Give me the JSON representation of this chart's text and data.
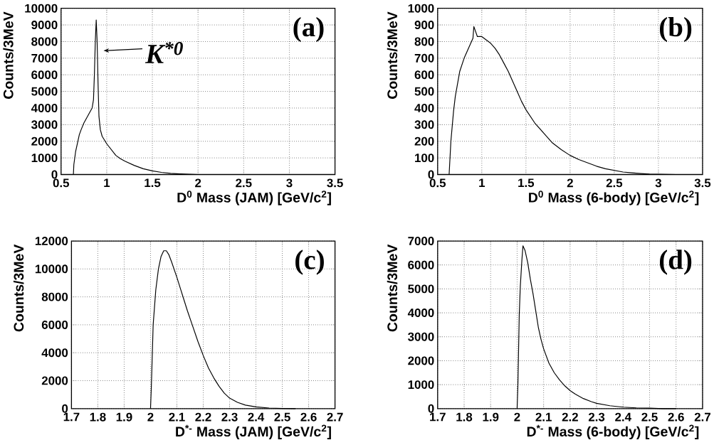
{
  "chart_data": [
    {
      "type": "line",
      "xlabel": "D$^{0}$ Mass (JAM) [GeV/c$^{2}$]",
      "ylabel": "Counts/3MeV",
      "xlim": [
        0.5,
        3.5
      ],
      "ylim": [
        0,
        10000
      ],
      "xticks": [
        0.5,
        1,
        1.5,
        2,
        2.5,
        3,
        3.5
      ],
      "yticks": [
        0,
        1000,
        2000,
        3000,
        4000,
        5000,
        6000,
        7000,
        8000,
        9000,
        10000
      ],
      "grid": true,
      "annotations": [
        "(a)",
        "K$^{*0}$"
      ],
      "x": [
        0.635,
        0.64,
        0.66,
        0.68,
        0.7,
        0.72,
        0.75,
        0.78,
        0.81,
        0.84,
        0.855,
        0.865,
        0.875,
        0.885,
        0.895,
        0.905,
        0.915,
        0.93,
        0.95,
        1.0,
        1.05,
        1.1,
        1.15,
        1.2,
        1.3,
        1.4,
        1.5,
        1.6,
        1.7,
        1.8,
        1.9,
        2.0,
        2.1,
        2.2
      ],
      "series": [
        {
          "color": "#000000",
          "values": [
            0,
            600,
            1400,
            1900,
            2400,
            2700,
            3100,
            3400,
            3700,
            4000,
            4500,
            6000,
            8000,
            9300,
            8000,
            5500,
            3500,
            2700,
            2300,
            1850,
            1500,
            1150,
            950,
            800,
            550,
            350,
            220,
            130,
            70,
            40,
            20,
            0,
            0,
            0
          ]
        }
      ]
    },
    {
      "type": "line",
      "xlabel": "D$^{0}$ Mass (6-body) [GeV/c$^{2}$]",
      "ylabel": "Counts/3MeV",
      "xlim": [
        0.5,
        3.5
      ],
      "ylim": [
        0,
        1000
      ],
      "xticks": [
        0.5,
        1,
        1.5,
        2,
        2.5,
        3,
        3.5
      ],
      "yticks": [
        0,
        100,
        200,
        300,
        400,
        500,
        600,
        700,
        800,
        900,
        1000
      ],
      "grid": true,
      "annotations": [
        "(b)"
      ],
      "x": [
        0.63,
        0.65,
        0.68,
        0.7,
        0.72,
        0.75,
        0.8,
        0.85,
        0.9,
        0.91,
        0.95,
        1.0,
        1.05,
        1.1,
        1.15,
        1.2,
        1.25,
        1.3,
        1.35,
        1.4,
        1.45,
        1.5,
        1.6,
        1.7,
        1.8,
        1.9,
        2.0,
        2.1,
        2.2,
        2.3,
        2.4,
        2.5,
        2.6,
        2.7,
        2.8,
        2.9,
        3.0,
        3.2
      ],
      "series": [
        {
          "color": "#000000",
          "values": [
            0,
            200,
            380,
            470,
            530,
            620,
            700,
            760,
            820,
            890,
            830,
            830,
            810,
            790,
            760,
            720,
            670,
            620,
            560,
            500,
            440,
            390,
            310,
            250,
            190,
            150,
            115,
            90,
            70,
            50,
            35,
            25,
            15,
            10,
            6,
            3,
            2,
            0
          ]
        }
      ]
    },
    {
      "type": "line",
      "xlabel": "D$^{*-}$ Mass (JAM) [GeV/c$^{2}$]",
      "ylabel": "Counts/3MeV",
      "xlim": [
        1.7,
        2.7
      ],
      "ylim": [
        0,
        12000
      ],
      "xticks": [
        1.7,
        1.8,
        1.9,
        2,
        2.1,
        2.2,
        2.3,
        2.4,
        2.5,
        2.6,
        2.7
      ],
      "yticks": [
        0,
        2000,
        4000,
        6000,
        8000,
        10000,
        12000
      ],
      "grid": true,
      "annotations": [
        "(c)"
      ],
      "x": [
        2.0,
        2.003,
        2.01,
        2.02,
        2.03,
        2.04,
        2.05,
        2.06,
        2.07,
        2.08,
        2.1,
        2.12,
        2.14,
        2.16,
        2.18,
        2.2,
        2.22,
        2.24,
        2.26,
        2.28,
        2.3,
        2.33,
        2.36,
        2.4,
        2.45,
        2.5,
        2.55
      ],
      "series": [
        {
          "color": "#000000",
          "values": [
            0,
            1500,
            6000,
            8500,
            10000,
            10900,
            11300,
            11300,
            11000,
            10500,
            9400,
            8200,
            7000,
            5900,
            4800,
            3800,
            2900,
            2200,
            1600,
            1100,
            750,
            450,
            250,
            120,
            40,
            10,
            0
          ]
        }
      ]
    },
    {
      "type": "line",
      "xlabel": "D$^{*-}$ Mass (6-body) [GeV/c$^{2}$]",
      "ylabel": "Counts/3MeV",
      "xlim": [
        1.7,
        2.7
      ],
      "ylim": [
        0,
        7000
      ],
      "xticks": [
        1.7,
        1.8,
        1.9,
        2,
        2.1,
        2.2,
        2.3,
        2.4,
        2.5,
        2.6,
        2.7
      ],
      "yticks": [
        0,
        1000,
        2000,
        3000,
        4000,
        5000,
        6000,
        7000
      ],
      "grid": true,
      "annotations": [
        "(d)"
      ],
      "x": [
        2.0,
        2.003,
        2.008,
        2.012,
        2.018,
        2.022,
        2.03,
        2.04,
        2.05,
        2.06,
        2.07,
        2.08,
        2.09,
        2.1,
        2.12,
        2.14,
        2.16,
        2.18,
        2.2,
        2.22,
        2.25,
        2.28,
        2.3,
        2.35,
        2.4,
        2.45,
        2.5,
        2.55,
        2.6
      ],
      "series": [
        {
          "color": "#000000",
          "values": [
            0,
            1000,
            3900,
            5100,
            6200,
            6800,
            6600,
            6100,
            5400,
            4800,
            4100,
            3400,
            2900,
            2500,
            1900,
            1500,
            1200,
            950,
            750,
            600,
            420,
            290,
            220,
            120,
            60,
            30,
            20,
            0,
            0
          ]
        }
      ]
    }
  ]
}
